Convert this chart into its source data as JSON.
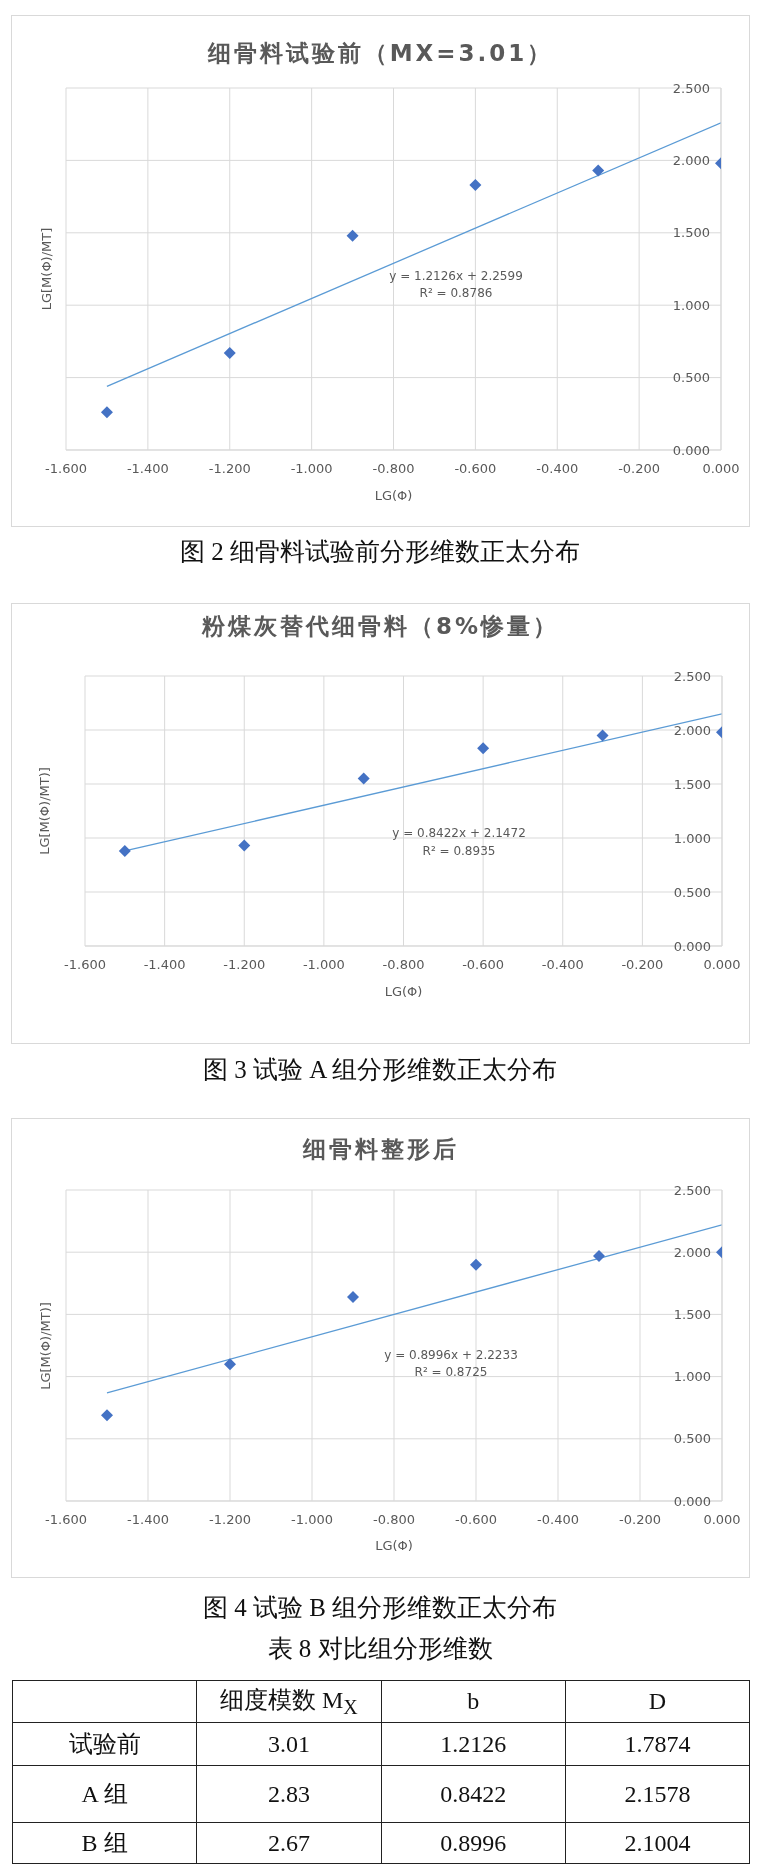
{
  "chart_data": [
    {
      "type": "scatter",
      "title": "细骨料试验前（MX=3.01）",
      "xlabel": "LG(Φ)",
      "ylabel": "LG[M(Φ)/MT]",
      "series": [
        {
          "type": "scatter",
          "x": [
            -1.5,
            -1.2,
            -0.9,
            -0.6,
            -0.3,
            0
          ],
          "values": [
            0.26,
            0.67,
            1.48,
            1.83,
            1.93,
            1.98
          ],
          "color": "#4472c4",
          "marker": "diamond"
        },
        {
          "type": "line",
          "x": [
            -1.5,
            0
          ],
          "values": [
            0.44,
            2.26
          ],
          "color": "#5b9bd5"
        }
      ],
      "xlim": [
        -1.6,
        0
      ],
      "xticks": [
        {
          "value": -1.6,
          "label": "-1.600"
        },
        {
          "value": -1.4,
          "label": "-1.400"
        },
        {
          "value": -1.2,
          "label": "-1.200"
        },
        {
          "value": -1,
          "label": "-1.000"
        },
        {
          "value": -0.8,
          "label": "-0.800"
        },
        {
          "value": -0.6,
          "label": "-0.600"
        },
        {
          "value": -0.4,
          "label": "-0.400"
        },
        {
          "value": -0.2,
          "label": "-0.200"
        },
        {
          "value": 0,
          "label": "0.000"
        }
      ],
      "ylim": [
        0,
        2.5
      ],
      "yticks": [
        {
          "value": 0,
          "label": "0.000"
        },
        {
          "value": 0.5,
          "label": "0.500"
        },
        {
          "value": 1,
          "label": "1.000"
        },
        {
          "value": 1.5,
          "label": "1.500"
        },
        {
          "value": 2,
          "label": "2.000"
        },
        {
          "value": 2.5,
          "label": "2.500"
        }
      ],
      "grid": true,
      "annotations": [
        "y = 1.2126x + 2.2599",
        "R² = 0.8786",
        "图 2 细骨料试验前分形维数正太分布"
      ]
    },
    {
      "type": "scatter",
      "title": "粉煤灰替代细骨料（8%惨量）",
      "xlabel": "LG(Φ)",
      "ylabel": "LG[M(Φ)/MT)]",
      "series": [
        {
          "type": "scatter",
          "x": [
            -1.5,
            -1.2,
            -0.9,
            -0.6,
            -0.3,
            0
          ],
          "values": [
            0.88,
            0.93,
            1.55,
            1.83,
            1.95,
            1.98
          ],
          "color": "#4472c4",
          "marker": "diamond"
        },
        {
          "type": "line",
          "x": [
            -1.5,
            0
          ],
          "values": [
            0.88,
            2.15
          ],
          "color": "#5b9bd5"
        }
      ],
      "xlim": [
        -1.6,
        0
      ],
      "xticks": [
        {
          "value": -1.6,
          "label": "-1.600"
        },
        {
          "value": -1.4,
          "label": "-1.400"
        },
        {
          "value": -1.2,
          "label": "-1.200"
        },
        {
          "value": -1,
          "label": "-1.000"
        },
        {
          "value": -0.8,
          "label": "-0.800"
        },
        {
          "value": -0.6,
          "label": "-0.600"
        },
        {
          "value": -0.4,
          "label": "-0.400"
        },
        {
          "value": -0.2,
          "label": "-0.200"
        },
        {
          "value": 0,
          "label": "0.000"
        }
      ],
      "ylim": [
        0,
        2.5
      ],
      "yticks": [
        {
          "value": 0,
          "label": "0.000"
        },
        {
          "value": 0.5,
          "label": "0.500"
        },
        {
          "value": 1,
          "label": "1.000"
        },
        {
          "value": 1.5,
          "label": "1.500"
        },
        {
          "value": 2,
          "label": "2.000"
        },
        {
          "value": 2.5,
          "label": "2.500"
        }
      ],
      "grid": true,
      "annotations": [
        "y = 0.8422x + 2.1472",
        "R² = 0.8935",
        "图 3 试验 A 组分形维数正太分布"
      ]
    },
    {
      "type": "scatter",
      "title": "细骨料整形后",
      "xlabel": "LG(Φ)",
      "ylabel": "LG[M(Φ)/MT)]",
      "series": [
        {
          "type": "scatter",
          "x": [
            -1.5,
            -1.2,
            -0.9,
            -0.6,
            -0.3,
            0
          ],
          "values": [
            0.69,
            1.1,
            1.64,
            1.9,
            1.97,
            2
          ],
          "color": "#4472c4",
          "marker": "diamond"
        },
        {
          "type": "line",
          "x": [
            -1.5,
            0
          ],
          "values": [
            0.87,
            2.22
          ],
          "color": "#5b9bd5"
        }
      ],
      "xlim": [
        -1.6,
        0
      ],
      "xticks": [
        {
          "value": -1.6,
          "label": "-1.600"
        },
        {
          "value": -1.4,
          "label": "-1.400"
        },
        {
          "value": -1.2,
          "label": "-1.200"
        },
        {
          "value": -1,
          "label": "-1.000"
        },
        {
          "value": -0.8,
          "label": "-0.800"
        },
        {
          "value": -0.6,
          "label": "-0.600"
        },
        {
          "value": -0.4,
          "label": "-0.400"
        },
        {
          "value": -0.2,
          "label": "-0.200"
        },
        {
          "value": 0,
          "label": "0.000"
        }
      ],
      "ylim": [
        0,
        2.5
      ],
      "yticks": [
        {
          "value": 0,
          "label": "0.000"
        },
        {
          "value": 0.5,
          "label": "0.500"
        },
        {
          "value": 1,
          "label": "1.000"
        },
        {
          "value": 1.5,
          "label": "1.500"
        },
        {
          "value": 2,
          "label": "2.000"
        },
        {
          "value": 2.5,
          "label": "2.500"
        }
      ],
      "grid": true,
      "annotations": [
        "y = 0.8996x + 2.2233",
        "R² = 0.8725",
        "图 4 试验 B 组分形维数正太分布"
      ]
    },
    {
      "type": "other",
      "title": "表 8 对比组分形维数",
      "categories": [
        "试验前",
        "A 组",
        "B 组"
      ],
      "series": [
        {
          "name": "细度模数 M$_{X}$",
          "values": [
            3.01,
            2.83,
            2.67
          ]
        },
        {
          "name": "b",
          "values": [
            1.2126,
            0.8422,
            0.8996
          ]
        },
        {
          "name": "D",
          "values": [
            1.7874,
            2.1578,
            2.1004
          ]
        }
      ],
      "data_labels": true
    }
  ]
}
